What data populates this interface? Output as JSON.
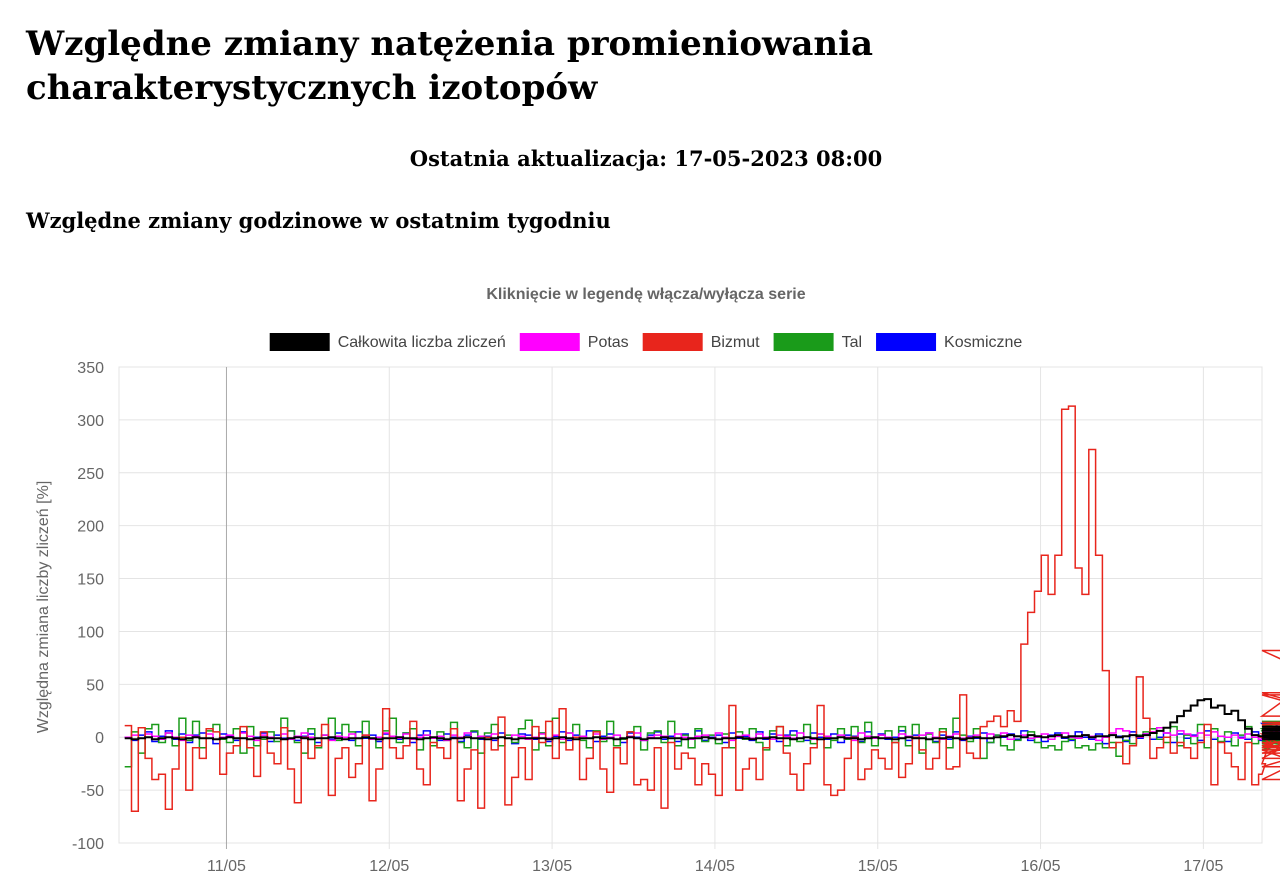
{
  "page": {
    "title": "Względne zmiany natężenia promieniowania charakterystycznych izotopów",
    "last_update": "Ostatnia aktualizacja: 17-05-2023 08:00",
    "section_title": "Względne zmiany godzinowe w ostatnim tygodniu"
  },
  "chart_data": {
    "type": "line",
    "step": true,
    "title": "Kliknięcie w legendę włącza/wyłącza serie",
    "xlabel": "",
    "ylabel": "Względna zmiana liczby zliczeń [%]",
    "ylim": [
      -100,
      350
    ],
    "yticks": [
      350,
      300,
      250,
      200,
      150,
      100,
      50,
      0,
      -50,
      -100
    ],
    "xlim": [
      -0.66,
      6.36
    ],
    "xticks": [
      {
        "label": "11/05",
        "x": 0
      },
      {
        "label": "12/05",
        "x": 1
      },
      {
        "label": "13/05",
        "x": 2
      },
      {
        "label": "14/05",
        "x": 3
      },
      {
        "label": "15/05",
        "x": 4
      },
      {
        "label": "16/05",
        "x": 5
      },
      {
        "label": "17/05",
        "x": 6
      }
    ],
    "x_start": -0.625,
    "x_step": 0.0417,
    "grid": true,
    "legend_position": "top",
    "series": [
      {
        "name": "Całkowita liczba zliczeń",
        "color": "#000000",
        "values": [
          -1,
          -2,
          -1,
          0,
          -2,
          -1,
          0,
          -1,
          -2,
          -1,
          0,
          -1,
          -1,
          -2,
          -1,
          0,
          -1,
          -1,
          -2,
          -1,
          0,
          -1,
          -1,
          -2,
          -1,
          0,
          -1,
          -2,
          -1,
          -1,
          0,
          -1,
          -2,
          -1,
          -1,
          0,
          -1,
          -2,
          -1,
          -1,
          0,
          -1,
          -1,
          -2,
          -1,
          0,
          -1,
          -2,
          -1,
          -1,
          0,
          -1,
          -1,
          -2,
          -1,
          0,
          -1,
          -2,
          -1,
          -1,
          -1,
          -1,
          -2,
          -1,
          0,
          -1,
          -2,
          -1,
          -1,
          0,
          -1,
          -1,
          -2,
          -1,
          0,
          -1,
          -2,
          -1,
          -1,
          0,
          -1,
          -1,
          -2,
          -1,
          -1,
          0,
          -1,
          -2,
          -1,
          -1,
          0,
          -1,
          -2,
          -1,
          -1,
          0,
          -1,
          -1,
          -2,
          -1,
          0,
          -1,
          -2,
          -1,
          -1,
          0,
          -1,
          -1,
          -2,
          -1,
          0,
          -1,
          -1,
          -2,
          -1,
          0,
          -1,
          -1,
          -2,
          -1,
          -1,
          0,
          -1,
          -2,
          -1,
          0,
          -1,
          -1,
          0,
          1,
          2,
          1,
          0,
          2,
          1,
          0,
          1,
          2,
          0,
          1,
          1,
          2,
          0,
          1,
          1,
          2,
          0,
          1,
          2,
          1,
          2,
          4,
          6,
          9,
          14,
          20,
          25,
          30,
          35,
          36,
          28,
          30,
          22,
          25,
          16,
          8,
          2,
          1,
          0,
          1,
          0,
          1,
          0,
          0,
          1,
          0,
          -1,
          0,
          0,
          1,
          0,
          -1,
          0,
          0,
          1,
          0,
          -1,
          0,
          0,
          1,
          0,
          -1,
          0,
          0,
          1,
          0,
          -1,
          0,
          1,
          3,
          6,
          10,
          8,
          4,
          2,
          0,
          -1,
          -2
        ]
      },
      {
        "name": "Potas",
        "color": "#ff00ff",
        "values": [
          0,
          2,
          -1,
          3,
          1,
          -2,
          4,
          0,
          -3,
          2,
          1,
          -1,
          3,
          -2,
          0,
          2,
          -1,
          4,
          1,
          -3,
          2,
          0,
          -1,
          3,
          -2,
          1,
          4,
          0,
          -1,
          2,
          -3,
          1,
          0,
          3,
          -1,
          2,
          -2,
          0,
          4,
          1,
          -1,
          3,
          -2,
          0,
          2,
          -1,
          1,
          -3,
          2,
          0,
          4,
          -1,
          1,
          -2,
          3,
          0,
          -1,
          2,
          1,
          -2,
          0,
          3,
          -1,
          2,
          -2,
          4,
          0,
          1,
          -1,
          3,
          -2,
          0,
          2,
          -1,
          1,
          4,
          -3,
          0,
          2,
          1,
          -1,
          3,
          0,
          -2,
          1,
          2,
          -1,
          4,
          0,
          -3,
          1,
          2,
          -1,
          3,
          0,
          -2,
          2,
          1,
          -1,
          4,
          0,
          -2,
          3,
          1,
          -1,
          2,
          0,
          -3,
          4,
          1,
          -1,
          2,
          0,
          -2,
          3,
          1,
          -1,
          2,
          4,
          0,
          -2,
          1,
          3,
          -1,
          0,
          2,
          -1,
          3,
          0,
          4,
          -2,
          1,
          2,
          -1,
          0,
          3,
          -2,
          1,
          4,
          0,
          -1,
          2,
          1,
          -3,
          0,
          4,
          8,
          6,
          2,
          0,
          3,
          5,
          9,
          4,
          2,
          6,
          3,
          1,
          4,
          2,
          5,
          1,
          0,
          2,
          -1,
          3,
          0,
          -2,
          1,
          2,
          4,
          -1,
          0,
          3,
          1,
          -2,
          2,
          0,
          4,
          -1,
          1,
          3,
          -2,
          0,
          2,
          1,
          -1,
          4,
          0,
          -2,
          3,
          1,
          -1,
          2,
          0,
          5,
          4,
          -2
        ]
      },
      {
        "name": "Bizmut",
        "color": "#e8251c",
        "values": [
          11,
          -70,
          9,
          -20,
          -40,
          -35,
          -68,
          -30,
          0,
          -50,
          -10,
          -20,
          8,
          5,
          -35,
          -15,
          -8,
          10,
          -10,
          -37,
          5,
          -15,
          -25,
          9,
          -30,
          -62,
          0,
          -20,
          -8,
          12,
          -55,
          -20,
          -10,
          -38,
          -25,
          2,
          -60,
          -30,
          27,
          -10,
          -20,
          -8,
          15,
          -30,
          -45,
          -5,
          -10,
          -20,
          8,
          -60,
          -30,
          -12,
          -67,
          0,
          -12,
          19,
          -64,
          -38,
          -10,
          -40,
          10,
          -5,
          15,
          -20,
          27,
          -12,
          0,
          -40,
          -20,
          5,
          -30,
          -52,
          -10,
          -25,
          5,
          -45,
          -40,
          -50,
          -10,
          -67,
          -5,
          -30,
          -15,
          -20,
          -45,
          -25,
          -35,
          -55,
          -10,
          30,
          -50,
          -30,
          -20,
          -40,
          -10,
          0,
          10,
          -15,
          -35,
          -50,
          -25,
          -10,
          30,
          -45,
          -55,
          -50,
          -20,
          0,
          -40,
          -30,
          -12,
          -20,
          -30,
          -5,
          -38,
          -25,
          0,
          -12,
          -30,
          -20,
          5,
          -30,
          -28,
          40,
          -15,
          -20,
          10,
          15,
          20,
          10,
          25,
          15,
          88,
          118,
          138,
          172,
          135,
          172,
          310,
          313,
          160,
          135,
          272,
          172,
          63,
          -10,
          -5,
          -25,
          -8,
          57,
          18,
          -20,
          -10,
          0,
          -15,
          -5,
          -10,
          -20,
          -5,
          12,
          -45,
          -5,
          -15,
          -28,
          -40,
          -5,
          -45,
          -35,
          -25,
          0,
          -12,
          -20,
          -5,
          -15,
          -8,
          3,
          -28,
          -10,
          0,
          42,
          20,
          82,
          40,
          12,
          -40,
          14,
          10,
          -5
        ]
      },
      {
        "name": "Tal",
        "color": "#1a9b1a",
        "values": [
          -28,
          5,
          -15,
          8,
          12,
          -5,
          4,
          -8,
          18,
          -3,
          15,
          -10,
          6,
          12,
          -2,
          -5,
          8,
          -15,
          10,
          -8,
          -2,
          5,
          -4,
          18,
          6,
          -5,
          -15,
          8,
          -10,
          2,
          18,
          -3,
          12,
          5,
          -8,
          15,
          -2,
          -10,
          6,
          18,
          -5,
          4,
          8,
          -12,
          2,
          -8,
          5,
          -3,
          14,
          -5,
          -10,
          6,
          -15,
          4,
          12,
          -8,
          2,
          -5,
          8,
          16,
          -12,
          4,
          -8,
          18,
          -5,
          4,
          12,
          -3,
          -10,
          6,
          -4,
          15,
          -8,
          -2,
          5,
          10,
          -12,
          4,
          6,
          -5,
          15,
          -8,
          2,
          -10,
          8,
          -4,
          2,
          -6,
          3,
          -10,
          5,
          -2,
          8,
          -5,
          -12,
          6,
          10,
          -8,
          2,
          -4,
          12,
          -6,
          3,
          -10,
          -3,
          8,
          -2,
          10,
          -5,
          14,
          -8,
          2,
          6,
          -5,
          10,
          -8,
          12,
          -15,
          3,
          -5,
          8,
          -10,
          18,
          2,
          -4,
          8,
          -20,
          -5,
          2,
          -8,
          -12,
          -3,
          0,
          5,
          -5,
          -10,
          -8,
          -12,
          -4,
          -2,
          -10,
          -8,
          -12,
          -6,
          -10,
          -5,
          -18,
          -3,
          -6,
          2,
          5,
          8,
          -2,
          -5,
          10,
          -8,
          2,
          -6,
          12,
          -10,
          8,
          -4,
          5,
          -8,
          2,
          10,
          -6,
          -2,
          6,
          -10,
          -4,
          8,
          -12,
          -4,
          10,
          -8,
          3,
          -6,
          12,
          -2,
          -10,
          4,
          8,
          -5,
          12,
          -6,
          15,
          -2,
          10,
          8,
          14
        ]
      },
      {
        "name": "Kosmiczne",
        "color": "#0000ff",
        "values": [
          0,
          -3,
          2,
          5,
          -4,
          1,
          6,
          -2,
          3,
          -5,
          2,
          4,
          -1,
          -6,
          3,
          1,
          -3,
          5,
          -2,
          0,
          4,
          -4,
          2,
          -1,
          6,
          -3,
          1,
          3,
          -5,
          2,
          -2,
          4,
          0,
          -3,
          5,
          -1,
          2,
          -4,
          3,
          1,
          -2,
          4,
          -5,
          2,
          6,
          -1,
          -3,
          3,
          0,
          -4,
          2,
          5,
          -2,
          1,
          -3,
          4,
          -1,
          -6,
          3,
          2,
          -2,
          4,
          -4,
          1,
          5,
          -3,
          2,
          -1,
          6,
          -4,
          1,
          3,
          -2,
          -5,
          4,
          0,
          -3,
          2,
          5,
          -2,
          1,
          -4,
          3,
          -1,
          6,
          -3,
          0,
          2,
          -5,
          4,
          -1,
          1,
          -3,
          5,
          -2,
          3,
          -4,
          2,
          6,
          -1,
          -3,
          4,
          0,
          -2,
          3,
          -5,
          2,
          1,
          -4,
          5,
          -1,
          3,
          -2,
          0,
          6,
          -3,
          2,
          -1,
          4,
          -4,
          2,
          -2,
          5,
          -3,
          1,
          -1,
          4,
          -5,
          2,
          0,
          3,
          -2,
          6,
          -3,
          1,
          -4,
          2,
          4,
          -1,
          -3,
          5,
          0,
          -2,
          3,
          -6,
          2,
          1,
          -4,
          5,
          -1,
          3,
          -2,
          0,
          4,
          -5,
          3,
          -1,
          2,
          -3,
          6,
          -2,
          1,
          -4,
          4,
          0,
          -2,
          5,
          -3,
          2,
          -1,
          13,
          -4,
          3,
          -2,
          8,
          -5,
          2,
          -1,
          4,
          -3,
          1,
          6,
          -2,
          -4,
          3,
          0,
          -5,
          6,
          -8
        ]
      }
    ]
  }
}
